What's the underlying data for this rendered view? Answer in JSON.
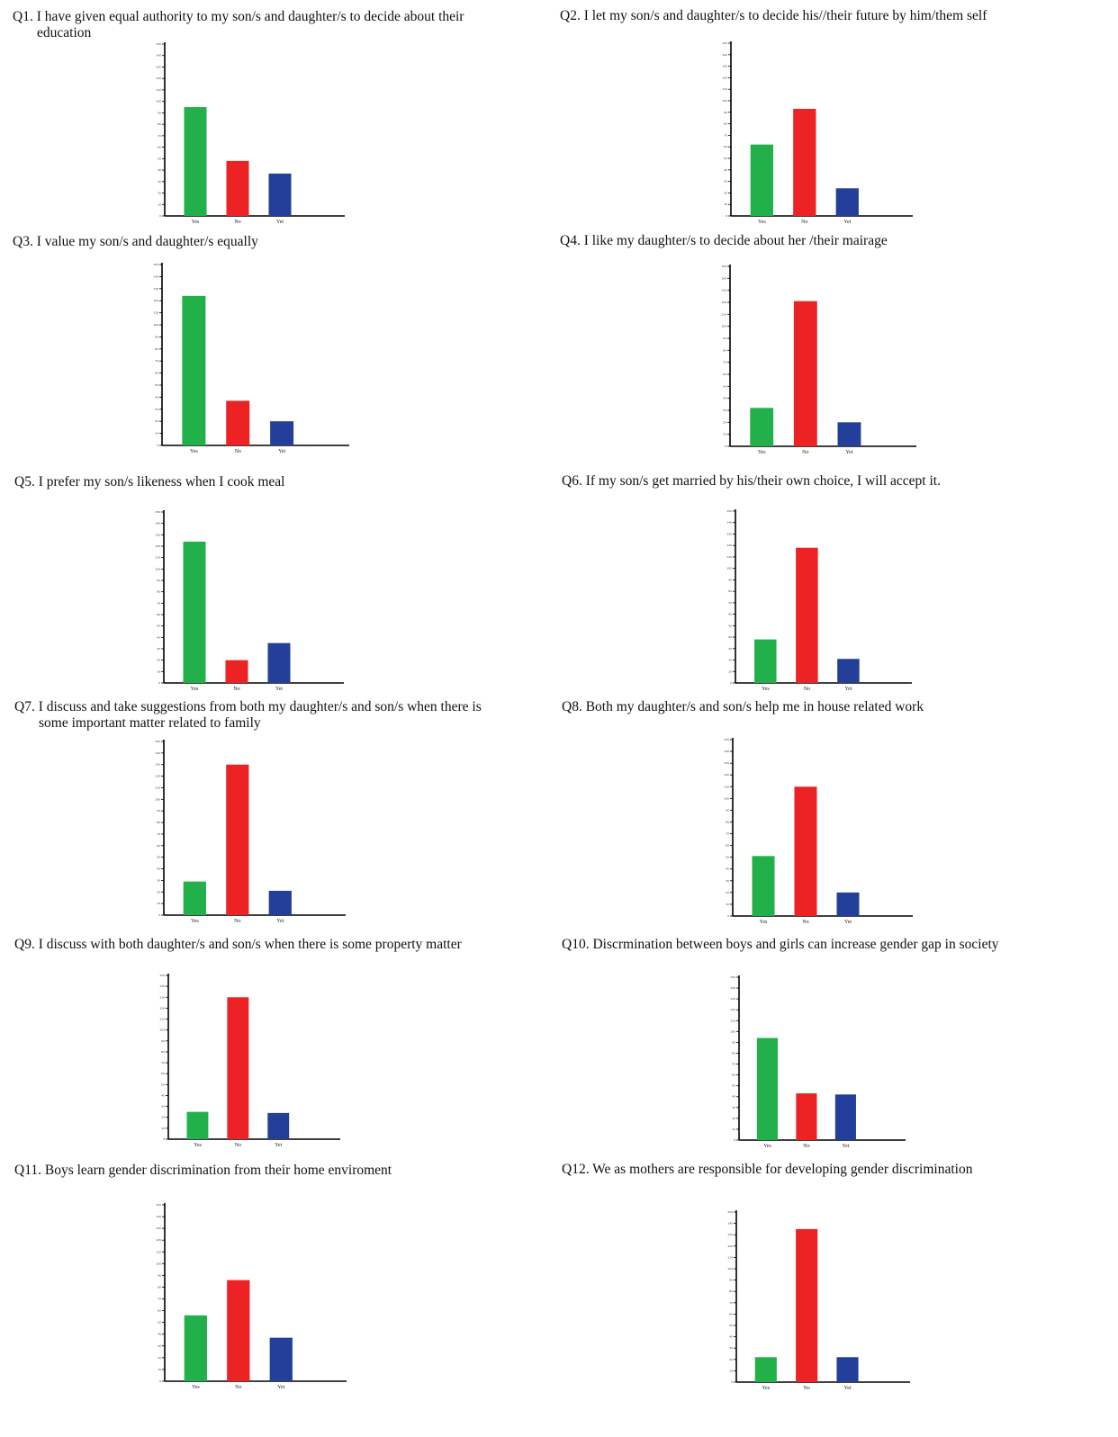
{
  "colors": {
    "Yes": "#22b04b",
    "No": "#ed2224",
    "Yet": "#233f99",
    "axis": "#000000"
  },
  "chart_data": [
    {
      "type": "bar",
      "title_line1": "Q1. I have given equal authority to my son/s and daughter/s to decide about their",
      "title_line2": "education",
      "categories": [
        "Yes",
        "No",
        "Yet"
      ],
      "values": [
        95,
        48,
        37
      ],
      "ylim": [
        0,
        150
      ]
    },
    {
      "type": "bar",
      "title_line1": "Q2. I let my son/s and daughter/s to decide his//their future by him/them self",
      "title_line2": "",
      "categories": [
        "Yes",
        "No",
        "Yet"
      ],
      "values": [
        62,
        93,
        24
      ],
      "ylim": [
        0,
        150
      ]
    },
    {
      "type": "bar",
      "title_line1": "Q3. I value my son/s and daughter/s equally",
      "title_line2": "",
      "categories": [
        "Yes",
        "No",
        "Yet"
      ],
      "values": [
        124,
        37,
        20
      ],
      "ylim": [
        0,
        150
      ]
    },
    {
      "type": "bar",
      "title_line1": "Q4. I like my daughter/s to decide about her /their mairage",
      "title_line2": "",
      "categories": [
        "Yes",
        "No",
        "Yet"
      ],
      "values": [
        32,
        121,
        20
      ],
      "ylim": [
        0,
        150
      ]
    },
    {
      "type": "bar",
      "title_line1": "Q5. I prefer my son/s likeness when I cook meal",
      "title_line2": "",
      "categories": [
        "Yes",
        "No",
        "Yet"
      ],
      "values": [
        124,
        20,
        35
      ],
      "ylim": [
        0,
        150
      ]
    },
    {
      "type": "bar",
      "title_line1": "Q6. If my son/s get married by his/their own choice, I will accept it.",
      "title_line2": "",
      "categories": [
        "Yes",
        "No",
        "Yet"
      ],
      "values": [
        38,
        118,
        21
      ],
      "ylim": [
        0,
        150
      ]
    },
    {
      "type": "bar",
      "title_line1": "Q7. I discuss and take suggestions from both my daughter/s and son/s when there is",
      "title_line2": "some important matter related to family",
      "categories": [
        "Yes",
        "No",
        "Yet"
      ],
      "values": [
        29,
        130,
        21
      ],
      "ylim": [
        0,
        150
      ]
    },
    {
      "type": "bar",
      "title_line1": "Q8. Both my daughter/s and son/s help me in house related work",
      "title_line2": "",
      "categories": [
        "Yes",
        "No",
        "Yet"
      ],
      "values": [
        51,
        110,
        20
      ],
      "ylim": [
        0,
        150
      ]
    },
    {
      "type": "bar",
      "title_line1": "Q9. I discuss with both daughter/s and son/s when there is some property matter",
      "title_line2": "",
      "categories": [
        "Yes",
        "No",
        "Yet"
      ],
      "values": [
        25,
        130,
        24
      ],
      "ylim": [
        0,
        150
      ]
    },
    {
      "type": "bar",
      "title_line1": "Q10. Discrmination between boys and girls can increase gender gap in society",
      "title_line2": "",
      "categories": [
        "Yes",
        "No",
        "Yet"
      ],
      "values": [
        94,
        43,
        42
      ],
      "ylim": [
        0,
        150
      ]
    },
    {
      "type": "bar",
      "title_line1": "Q11.  Boys learn gender discrimination from their home enviroment",
      "title_line2": "",
      "categories": [
        "Yes",
        "No",
        "Yet"
      ],
      "values": [
        56,
        86,
        37
      ],
      "ylim": [
        0,
        150
      ]
    },
    {
      "type": "bar",
      "title_line1": "Q12. We as mothers are responsible for developing gender discrimination",
      "title_line2": "",
      "categories": [
        "Yes",
        "No",
        "Yet"
      ],
      "values": [
        22,
        135,
        22
      ],
      "ylim": [
        0,
        150
      ]
    }
  ]
}
